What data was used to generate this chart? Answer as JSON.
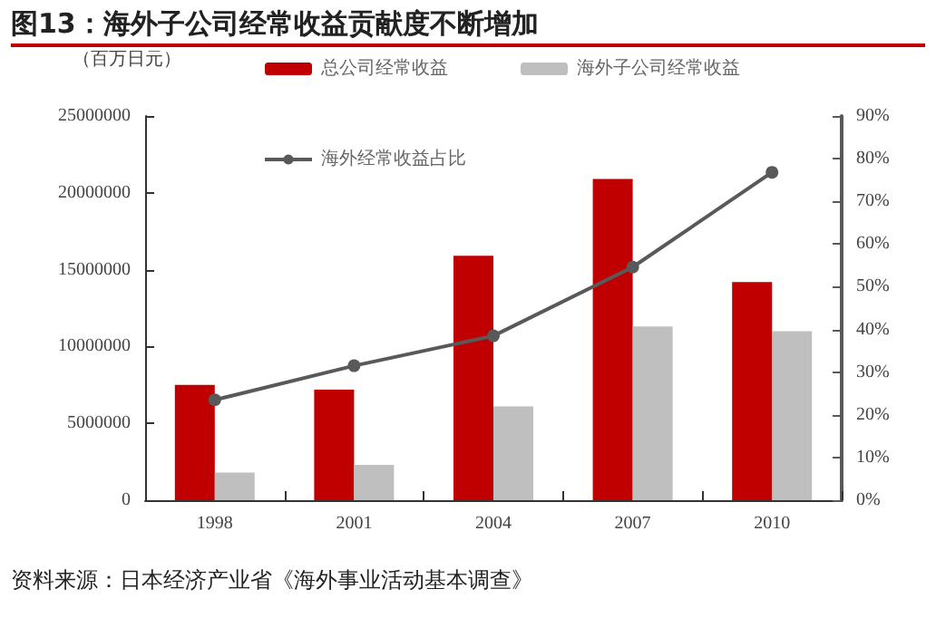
{
  "chart_data": {
    "type": "bar",
    "title": "图13：海外子公司经常收益贡献度不断增加",
    "ylabel": "（百万日元）",
    "annotations": [
      "资料来源：日本经济产业省《海外事业活动基本调查》"
    ],
    "categories": [
      "1998",
      "2001",
      "2004",
      "2007",
      "2010"
    ],
    "series": [
      {
        "name": "总公司经常收益",
        "color": "#c00000",
        "values": [
          7500000,
          7200000,
          15900000,
          20900000,
          14200000
        ]
      },
      {
        "name": "海外子公司经常收益",
        "color": "#bfbfbf",
        "values": [
          1800000,
          2300000,
          6100000,
          11300000,
          11000000
        ]
      },
      {
        "name": "海外经常收益占比",
        "type": "line",
        "axis": "y2",
        "color": "#595959",
        "marker": "circle",
        "values": [
          23.5,
          31.5,
          38.5,
          54.6,
          76.8
        ]
      }
    ],
    "ylim": [
      0,
      25000000
    ],
    "yticks": [
      0,
      5000000,
      10000000,
      15000000,
      20000000,
      25000000
    ],
    "y2lim": [
      0,
      90
    ],
    "y2ticks": [
      {
        "value": 0,
        "label": "0%"
      },
      {
        "value": 10,
        "label": "10%"
      },
      {
        "value": 20,
        "label": "20%"
      },
      {
        "value": 30,
        "label": "30%"
      },
      {
        "value": 40,
        "label": "40%"
      },
      {
        "value": 50,
        "label": "50%"
      },
      {
        "value": 60,
        "label": "60%"
      },
      {
        "value": 70,
        "label": "70%"
      },
      {
        "value": 80,
        "label": "80%"
      },
      {
        "value": 90,
        "label": "90%"
      }
    ],
    "grid": false,
    "legend": "top"
  }
}
